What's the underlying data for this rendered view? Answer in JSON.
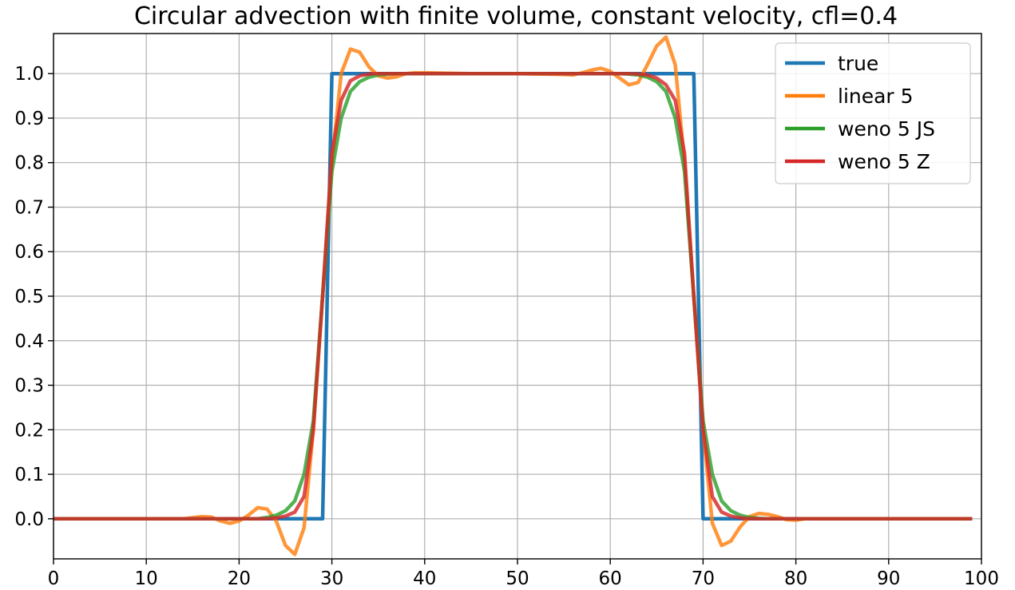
{
  "chart_data": {
    "type": "line",
    "title": "Circular advection with finite volume, constant velocity, cfl=0.4",
    "xlabel": "",
    "ylabel": "",
    "xlim": [
      0,
      100
    ],
    "ylim": [
      -0.09,
      1.09
    ],
    "grid": true,
    "legend_position": "top-right",
    "x_ticks": [
      0,
      10,
      20,
      30,
      40,
      50,
      60,
      70,
      80,
      90,
      100
    ],
    "x_tick_labels": [
      "0",
      "10",
      "20",
      "30",
      "40",
      "50",
      "60",
      "70",
      "80",
      "90",
      "100"
    ],
    "y_ticks": [
      0.0,
      0.1,
      0.2,
      0.3,
      0.4,
      0.5,
      0.6,
      0.7,
      0.8,
      0.9,
      1.0
    ],
    "y_tick_labels": [
      "0.0",
      "0.1",
      "0.2",
      "0.3",
      "0.4",
      "0.5",
      "0.6",
      "0.7",
      "0.8",
      "0.9",
      "1.0"
    ],
    "series": [
      {
        "name": "true",
        "color": "#1f77b4",
        "x": [
          0,
          29,
          30,
          69,
          70,
          99
        ],
        "y": [
          0,
          0,
          1,
          1,
          0,
          0
        ]
      },
      {
        "name": "linear 5",
        "color": "#ff7f0e",
        "x": [
          0,
          14,
          16,
          17,
          18,
          19,
          20,
          21,
          22,
          23,
          24,
          25,
          26,
          27,
          28,
          29,
          30,
          31,
          32,
          33,
          34,
          35,
          36,
          37,
          38,
          39,
          40,
          45,
          50,
          55,
          56,
          57,
          58,
          59,
          60,
          61,
          62,
          63,
          64,
          65,
          66,
          67,
          68,
          69,
          70,
          71,
          72,
          73,
          74,
          75,
          76,
          77,
          78,
          79,
          80,
          81,
          99
        ],
        "y": [
          0,
          0,
          0.005,
          0.004,
          -0.005,
          -0.01,
          -0.005,
          0.008,
          0.025,
          0.022,
          -0.005,
          -0.06,
          -0.08,
          -0.02,
          0.2,
          0.5,
          0.8,
          1.0,
          1.055,
          1.048,
          1.015,
          0.995,
          0.99,
          0.993,
          1.0,
          1.002,
          1.002,
          1.0,
          1.0,
          0.998,
          0.997,
          1.002,
          1.008,
          1.012,
          1.005,
          0.99,
          0.975,
          0.98,
          1.02,
          1.062,
          1.082,
          1.02,
          0.8,
          0.5,
          0.2,
          -0.01,
          -0.06,
          -0.05,
          -0.018,
          0.005,
          0.012,
          0.01,
          0.005,
          -0.002,
          -0.003,
          0,
          0
        ]
      },
      {
        "name": "weno 5 JS",
        "color": "#2ca02c",
        "x": [
          0,
          22,
          23,
          24,
          25,
          26,
          27,
          28,
          29,
          30,
          31,
          32,
          33,
          34,
          35,
          36,
          37,
          38,
          61,
          62,
          63,
          64,
          65,
          66,
          67,
          68,
          69,
          70,
          71,
          72,
          73,
          74,
          75,
          76,
          77,
          99
        ],
        "y": [
          0,
          0,
          0.003,
          0.008,
          0.018,
          0.04,
          0.1,
          0.22,
          0.5,
          0.78,
          0.9,
          0.96,
          0.982,
          0.992,
          0.997,
          0.999,
          1.0,
          1.0,
          1.0,
          0.999,
          0.997,
          0.992,
          0.982,
          0.96,
          0.9,
          0.78,
          0.5,
          0.22,
          0.1,
          0.04,
          0.018,
          0.008,
          0.003,
          0.001,
          0,
          0
        ]
      },
      {
        "name": "weno 5 Z",
        "color": "#d62728",
        "x": [
          0,
          23,
          24,
          25,
          26,
          27,
          28,
          29,
          30,
          31,
          32,
          33,
          34,
          35,
          36,
          62,
          63,
          64,
          65,
          66,
          67,
          68,
          69,
          70,
          71,
          72,
          73,
          74,
          75,
          99
        ],
        "y": [
          0,
          0,
          0.002,
          0.006,
          0.015,
          0.05,
          0.2,
          0.5,
          0.82,
          0.94,
          0.984,
          0.995,
          0.999,
          1.0,
          1.0,
          1.0,
          0.999,
          0.997,
          0.99,
          0.975,
          0.94,
          0.82,
          0.5,
          0.2,
          0.05,
          0.015,
          0.006,
          0.002,
          0,
          0
        ]
      }
    ]
  }
}
